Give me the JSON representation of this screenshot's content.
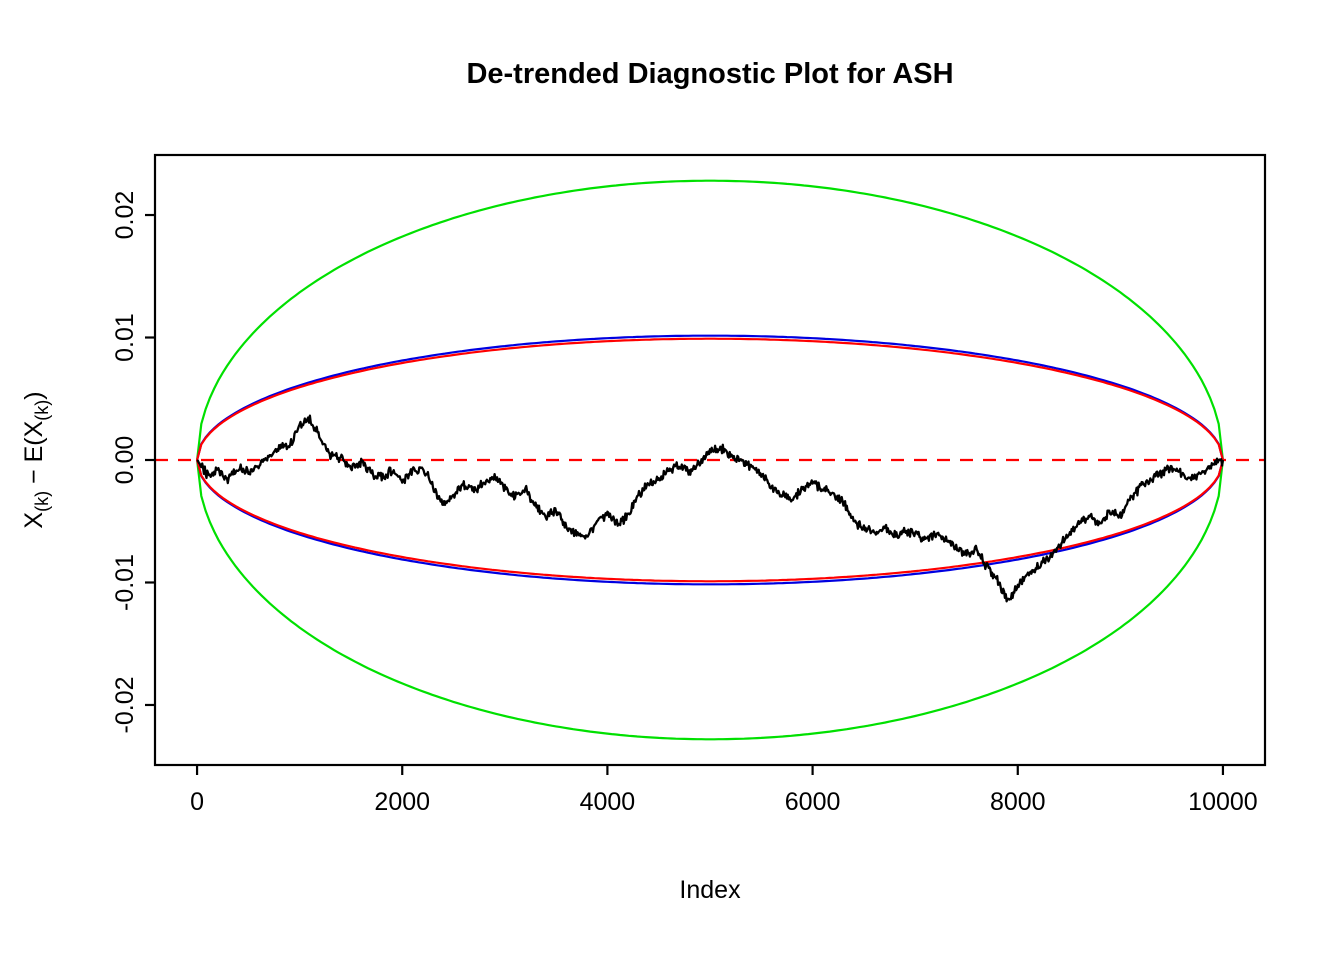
{
  "chart_data": {
    "type": "line",
    "title": "De-trended Diagnostic Plot for ASH",
    "xlabel": "Index",
    "ylabel": "X(k) - E(X(k))",
    "ylabel_parts": [
      {
        "t": "X",
        "sub": false
      },
      {
        "t": "(k)",
        "sub": true
      },
      {
        "t": " − E(X",
        "sub": false
      },
      {
        "t": "(k)",
        "sub": true
      },
      {
        "t": ")",
        "sub": false
      }
    ],
    "xticks": [
      0,
      2000,
      4000,
      6000,
      8000,
      10000
    ],
    "xtick_labels": [
      "0",
      "2000",
      "4000",
      "6000",
      "8000",
      "10000"
    ],
    "yticks": [
      -0.02,
      -0.01,
      0.0,
      0.01,
      0.02
    ],
    "ytick_labels": [
      "-0.02",
      "-0.01",
      "0.00",
      "0.01",
      "0.02"
    ],
    "xlim": [
      -410,
      10410
    ],
    "ylim": [
      -0.0249,
      0.0249
    ],
    "background_color": "#FFFFFF",
    "axis_color": "#000000",
    "envelopes": [
      {
        "name": "outer-green-envelope",
        "color": "#00E000",
        "amplitude": 0.0228,
        "x_start": 0,
        "x_end": 10000
      },
      {
        "name": "blue-envelope",
        "color": "#0000E0",
        "amplitude": 0.01015,
        "x_start": 0,
        "x_end": 10000
      },
      {
        "name": "red-envelope",
        "color": "#FF0000",
        "amplitude": 0.0099,
        "x_start": 0,
        "x_end": 10000
      }
    ],
    "zero_line": {
      "name": "zero-reference-line",
      "color": "#FF0000",
      "y": 0,
      "style": "dashed"
    },
    "series": [
      {
        "name": "detrended-order-statistics",
        "color": "#000000",
        "x_start": 0,
        "x_step": 100,
        "y": [
          0.0,
          -0.0012,
          -0.0008,
          -0.0015,
          -0.0006,
          -0.001,
          -0.0003,
          0.0002,
          0.0012,
          0.001,
          0.0028,
          0.0033,
          0.0018,
          0.0004,
          0.0002,
          -0.0006,
          -0.0002,
          -0.001,
          -0.0014,
          -0.0008,
          -0.0016,
          -0.001,
          -0.0006,
          -0.0022,
          -0.0038,
          -0.0028,
          -0.002,
          -0.0026,
          -0.0018,
          -0.0014,
          -0.0022,
          -0.003,
          -0.0024,
          -0.0038,
          -0.0046,
          -0.004,
          -0.0055,
          -0.006,
          -0.0062,
          -0.005,
          -0.0044,
          -0.0052,
          -0.0046,
          -0.003,
          -0.002,
          -0.0016,
          -0.0008,
          -0.0004,
          -0.001,
          -0.0002,
          0.0006,
          0.001,
          0.0004,
          0.0,
          -0.0006,
          -0.0012,
          -0.0022,
          -0.0028,
          -0.0032,
          -0.0024,
          -0.0018,
          -0.0024,
          -0.0028,
          -0.0035,
          -0.005,
          -0.0056,
          -0.006,
          -0.0055,
          -0.0062,
          -0.0058,
          -0.006,
          -0.0066,
          -0.006,
          -0.0066,
          -0.0072,
          -0.0078,
          -0.0072,
          -0.0088,
          -0.0098,
          -0.0114,
          -0.0104,
          -0.0092,
          -0.0088,
          -0.008,
          -0.007,
          -0.006,
          -0.0052,
          -0.0046,
          -0.0052,
          -0.0042,
          -0.0046,
          -0.0032,
          -0.0022,
          -0.0016,
          -0.001,
          -0.0006,
          -0.0012,
          -0.0016,
          -0.001,
          -0.0004,
          0.0
        ]
      }
    ]
  }
}
